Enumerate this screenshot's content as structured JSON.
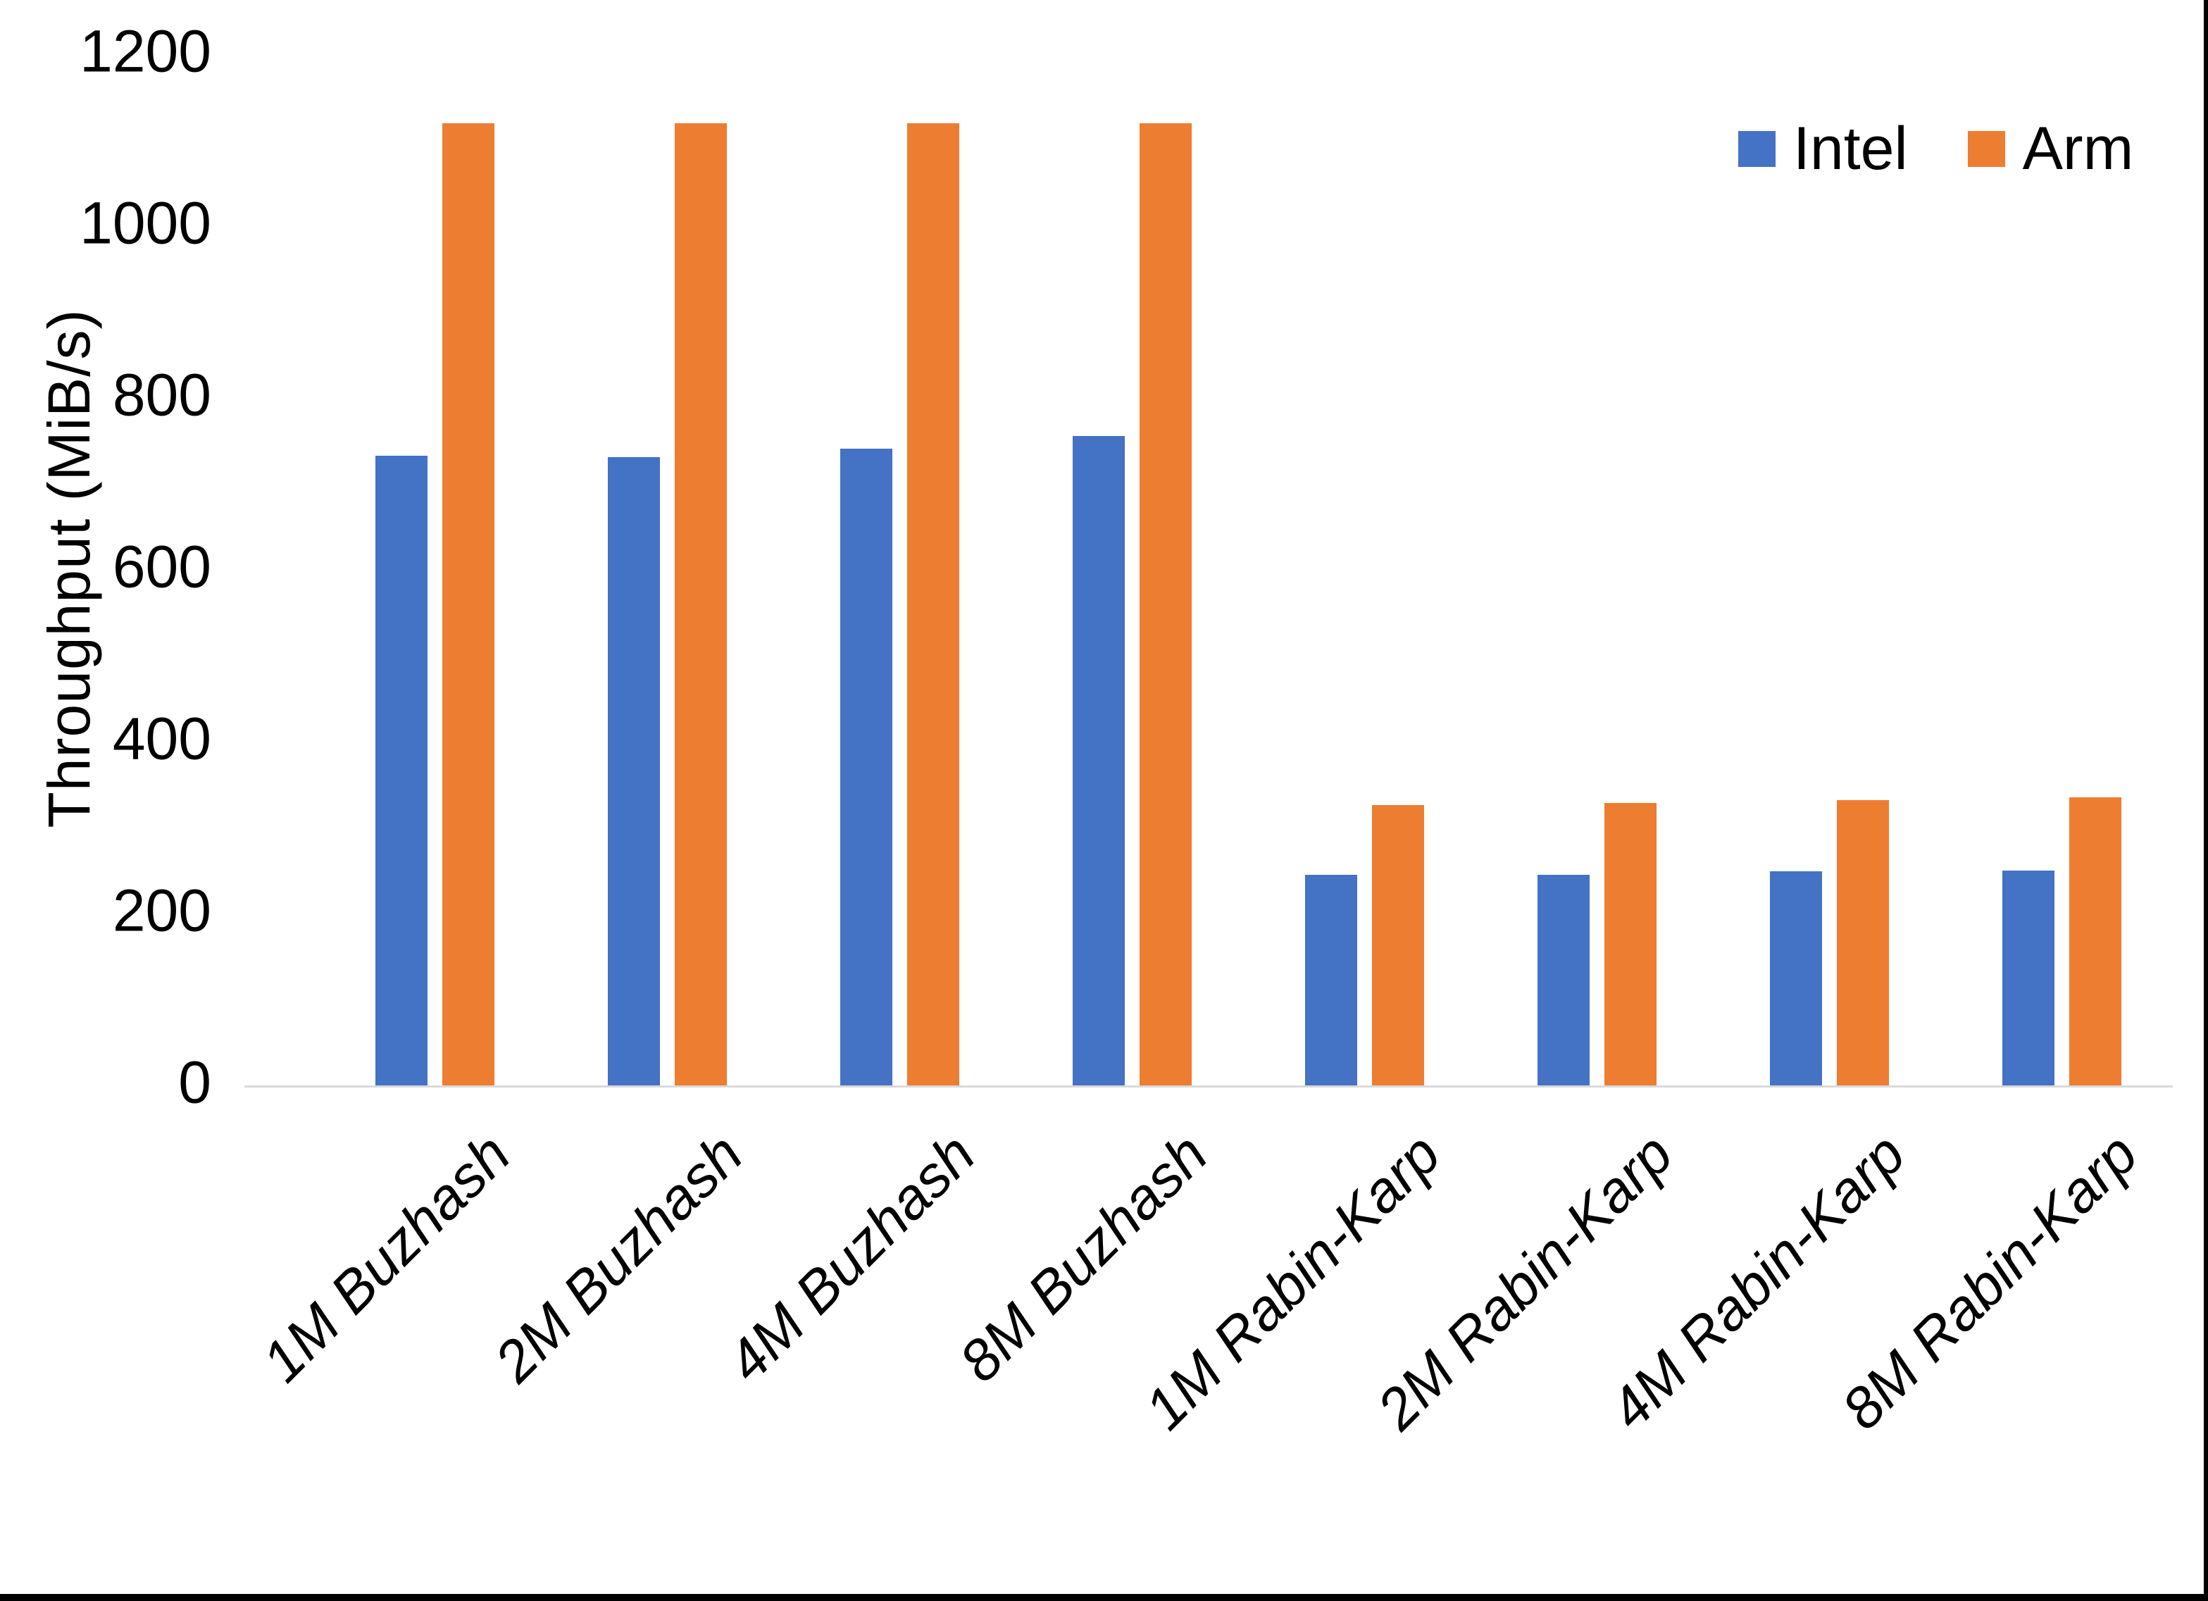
{
  "chart_data": {
    "type": "bar",
    "title": "",
    "xlabel": "",
    "ylabel": "Throughput (MiB/s)",
    "categories": [
      "1M Buzhash",
      "2M Buzhash",
      "4M Buzhash",
      "8M Buzhash",
      "1M Rabin-Karp",
      "2M Rabin-Karp",
      "4M Rabin-Karp",
      "8M Rabin-Karp"
    ],
    "series": [
      {
        "name": "Intel",
        "color": "#4472C4",
        "values": [
          733,
          731,
          741,
          756,
          245,
          245,
          249,
          250
        ]
      },
      {
        "name": "Arm",
        "color": "#ED7D31",
        "values": [
          1120,
          1120,
          1120,
          1120,
          326,
          329,
          332,
          335
        ]
      }
    ],
    "ylim": [
      0,
      1200
    ],
    "yticks": [
      0,
      200,
      400,
      600,
      800,
      1000,
      1200
    ],
    "grid": false,
    "legend_position": "top-right",
    "axis_line_color": "#D9D9D9",
    "text_color": "#000000"
  }
}
